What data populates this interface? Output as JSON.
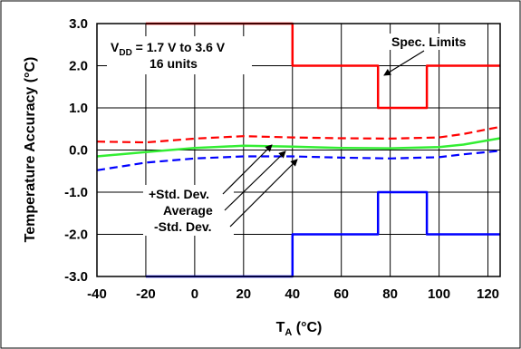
{
  "chart_data": {
    "type": "line",
    "xlabel": {
      "main": "T",
      "sub": "A",
      "unit": " (°C)"
    },
    "ylabel": "Temperature Accuracy (°C)",
    "xlim": [
      -40,
      125
    ],
    "ylim": [
      -3,
      3
    ],
    "x_ticks": [
      -40,
      -20,
      0,
      20,
      40,
      60,
      80,
      100,
      120
    ],
    "x_tick_labels": [
      "-40",
      "-20",
      "0",
      "20",
      "40",
      "60",
      "80",
      "100",
      "120"
    ],
    "y_ticks": [
      3,
      2,
      1,
      0,
      -1,
      -2,
      -3
    ],
    "y_tick_labels": [
      "3.0",
      "2.0",
      "1.0",
      "0.0",
      "-1.0",
      "-2.0",
      "-3.0"
    ],
    "grid": true,
    "conditions": {
      "vdd_main": "V",
      "vdd_sub": "DD",
      "vdd_rest": " = 1.7 V to 3.6 V",
      "units": "16 units"
    },
    "series": [
      {
        "key": "spec_upper",
        "color": "#ff0000",
        "dash": "solid",
        "points": [
          [
            -20,
            3.0
          ],
          [
            40,
            3.0
          ],
          [
            40,
            2.0
          ],
          [
            75,
            2.0
          ],
          [
            75,
            1.0
          ],
          [
            95,
            1.0
          ],
          [
            95,
            2.0
          ],
          [
            125,
            2.0
          ]
        ]
      },
      {
        "key": "spec_lower",
        "color": "#0000ff",
        "dash": "solid",
        "points": [
          [
            -20,
            -3.0
          ],
          [
            40,
            -3.0
          ],
          [
            40,
            -2.0
          ],
          [
            75,
            -2.0
          ],
          [
            75,
            -1.0
          ],
          [
            95,
            -1.0
          ],
          [
            95,
            -2.0
          ],
          [
            125,
            -2.0
          ]
        ]
      },
      {
        "key": "plus_std",
        "color": "#ff0000",
        "dash": "dashed",
        "points": [
          [
            -40,
            0.2
          ],
          [
            -20,
            0.18
          ],
          [
            0,
            0.27
          ],
          [
            20,
            0.33
          ],
          [
            40,
            0.3
          ],
          [
            60,
            0.28
          ],
          [
            80,
            0.27
          ],
          [
            100,
            0.3
          ],
          [
            110,
            0.38
          ],
          [
            125,
            0.55
          ]
        ]
      },
      {
        "key": "average",
        "color": "#33ee33",
        "dash": "solid",
        "points": [
          [
            -40,
            -0.15
          ],
          [
            -20,
            -0.05
          ],
          [
            0,
            0.05
          ],
          [
            20,
            0.1
          ],
          [
            40,
            0.08
          ],
          [
            60,
            0.05
          ],
          [
            80,
            0.04
          ],
          [
            100,
            0.07
          ],
          [
            110,
            0.13
          ],
          [
            125,
            0.28
          ]
        ]
      },
      {
        "key": "minus_std",
        "color": "#0000ff",
        "dash": "dashed",
        "points": [
          [
            -40,
            -0.48
          ],
          [
            -20,
            -0.3
          ],
          [
            0,
            -0.2
          ],
          [
            20,
            -0.15
          ],
          [
            40,
            -0.15
          ],
          [
            60,
            -0.18
          ],
          [
            80,
            -0.2
          ],
          [
            100,
            -0.17
          ],
          [
            110,
            -0.1
          ],
          [
            125,
            -0.02
          ]
        ]
      }
    ],
    "annotations": {
      "spec_limits": "Spec. Limits",
      "plus_std": "+Std. Dev.",
      "average": "Average",
      "minus_std": "-Std. Dev."
    }
  }
}
